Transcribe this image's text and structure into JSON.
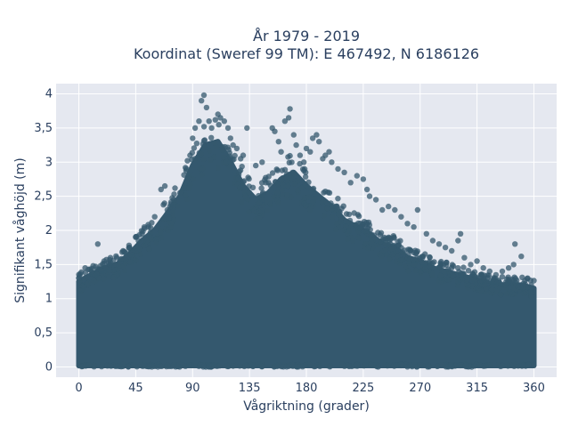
{
  "chart_data": {
    "type": "scatter",
    "title_lines": [
      "År 1979 - 2019",
      "Koordinat (Sweref 99 TM): E 467492, N 6186126"
    ],
    "xlabel": "Vågriktning (grader)",
    "ylabel": "Signifikant våghöjd (m)",
    "xlim": [
      -18,
      378
    ],
    "ylim": [
      -0.15,
      4.15
    ],
    "xticks": [
      0,
      45,
      90,
      135,
      180,
      225,
      270,
      315,
      360
    ],
    "xtick_labels": [
      "0",
      "45",
      "90",
      "135",
      "180",
      "225",
      "270",
      "315",
      "360"
    ],
    "yticks": [
      0,
      0.5,
      1,
      1.5,
      2,
      2.5,
      3,
      3.5,
      4
    ],
    "ytick_labels": [
      "0",
      "0,5",
      "1",
      "1,5",
      "2",
      "2,5",
      "3",
      "3,5",
      "4"
    ],
    "grid": true,
    "marker_color": "#34586e",
    "plot_bgcolor": "#e5e8f0",
    "series": [
      {
        "envelope": {
          "x": [
            0,
            10,
            20,
            30,
            40,
            50,
            60,
            70,
            80,
            90,
            100,
            110,
            120,
            130,
            140,
            150,
            160,
            170,
            180,
            190,
            200,
            210,
            220,
            230,
            240,
            250,
            260,
            270,
            280,
            290,
            300,
            310,
            320,
            330,
            340,
            350,
            360
          ],
          "y_max": [
            1.25,
            1.35,
            1.45,
            1.5,
            1.65,
            1.85,
            2.0,
            2.25,
            2.5,
            2.95,
            3.25,
            3.3,
            3.0,
            2.65,
            2.45,
            2.55,
            2.75,
            2.85,
            2.65,
            2.5,
            2.35,
            2.15,
            2.05,
            1.95,
            1.8,
            1.75,
            1.6,
            1.55,
            1.45,
            1.4,
            1.35,
            1.3,
            1.25,
            1.2,
            1.2,
            1.2,
            1.15
          ]
        },
        "outliers": [
          [
            0,
            1.3
          ],
          [
            5,
            1.45
          ],
          [
            10,
            1.4
          ],
          [
            15,
            1.8
          ],
          [
            20,
            1.55
          ],
          [
            25,
            1.6
          ],
          [
            30,
            1.6
          ],
          [
            35,
            1.7
          ],
          [
            40,
            1.75
          ],
          [
            45,
            1.9
          ],
          [
            50,
            1.95
          ],
          [
            55,
            2.05
          ],
          [
            60,
            2.2
          ],
          [
            65,
            2.6
          ],
          [
            68,
            2.65
          ],
          [
            70,
            2.3
          ],
          [
            75,
            2.45
          ],
          [
            80,
            2.55
          ],
          [
            85,
            2.9
          ],
          [
            88,
            3.1
          ],
          [
            90,
            3.35
          ],
          [
            92,
            3.5
          ],
          [
            95,
            3.6
          ],
          [
            97,
            3.9
          ],
          [
            99,
            3.98
          ],
          [
            101,
            3.8
          ],
          [
            103,
            3.6
          ],
          [
            105,
            3.5
          ],
          [
            108,
            3.62
          ],
          [
            110,
            3.7
          ],
          [
            112,
            3.65
          ],
          [
            115,
            3.6
          ],
          [
            118,
            3.5
          ],
          [
            120,
            3.35
          ],
          [
            122,
            3.25
          ],
          [
            125,
            3.2
          ],
          [
            128,
            3.05
          ],
          [
            130,
            3.1
          ],
          [
            133,
            3.5
          ],
          [
            140,
            2.95
          ],
          [
            145,
            3.0
          ],
          [
            150,
            2.7
          ],
          [
            153,
            3.5
          ],
          [
            155,
            3.45
          ],
          [
            158,
            3.3
          ],
          [
            160,
            3.15
          ],
          [
            163,
            3.6
          ],
          [
            166,
            3.65
          ],
          [
            167,
            3.78
          ],
          [
            170,
            3.4
          ],
          [
            172,
            3.25
          ],
          [
            175,
            3.1
          ],
          [
            178,
            3.0
          ],
          [
            180,
            3.2
          ],
          [
            183,
            3.15
          ],
          [
            185,
            3.35
          ],
          [
            188,
            3.4
          ],
          [
            190,
            3.3
          ],
          [
            193,
            3.05
          ],
          [
            195,
            3.1
          ],
          [
            198,
            3.15
          ],
          [
            200,
            3.0
          ],
          [
            205,
            2.9
          ],
          [
            210,
            2.85
          ],
          [
            215,
            2.7
          ],
          [
            220,
            2.8
          ],
          [
            225,
            2.75
          ],
          [
            228,
            2.6
          ],
          [
            230,
            2.5
          ],
          [
            235,
            2.45
          ],
          [
            240,
            2.3
          ],
          [
            245,
            2.35
          ],
          [
            250,
            2.3
          ],
          [
            255,
            2.2
          ],
          [
            260,
            2.1
          ],
          [
            265,
            2.05
          ],
          [
            268,
            2.3
          ],
          [
            275,
            1.95
          ],
          [
            280,
            1.85
          ],
          [
            285,
            1.8
          ],
          [
            290,
            1.75
          ],
          [
            295,
            1.7
          ],
          [
            300,
            1.85
          ],
          [
            302,
            1.95
          ],
          [
            305,
            1.6
          ],
          [
            310,
            1.5
          ],
          [
            315,
            1.55
          ],
          [
            320,
            1.45
          ],
          [
            325,
            1.4
          ],
          [
            330,
            1.35
          ],
          [
            335,
            1.4
          ],
          [
            340,
            1.45
          ],
          [
            344,
            1.5
          ],
          [
            345,
            1.8
          ],
          [
            350,
            1.62
          ],
          [
            355,
            1.3
          ],
          [
            358,
            1.2
          ]
        ]
      }
    ]
  }
}
